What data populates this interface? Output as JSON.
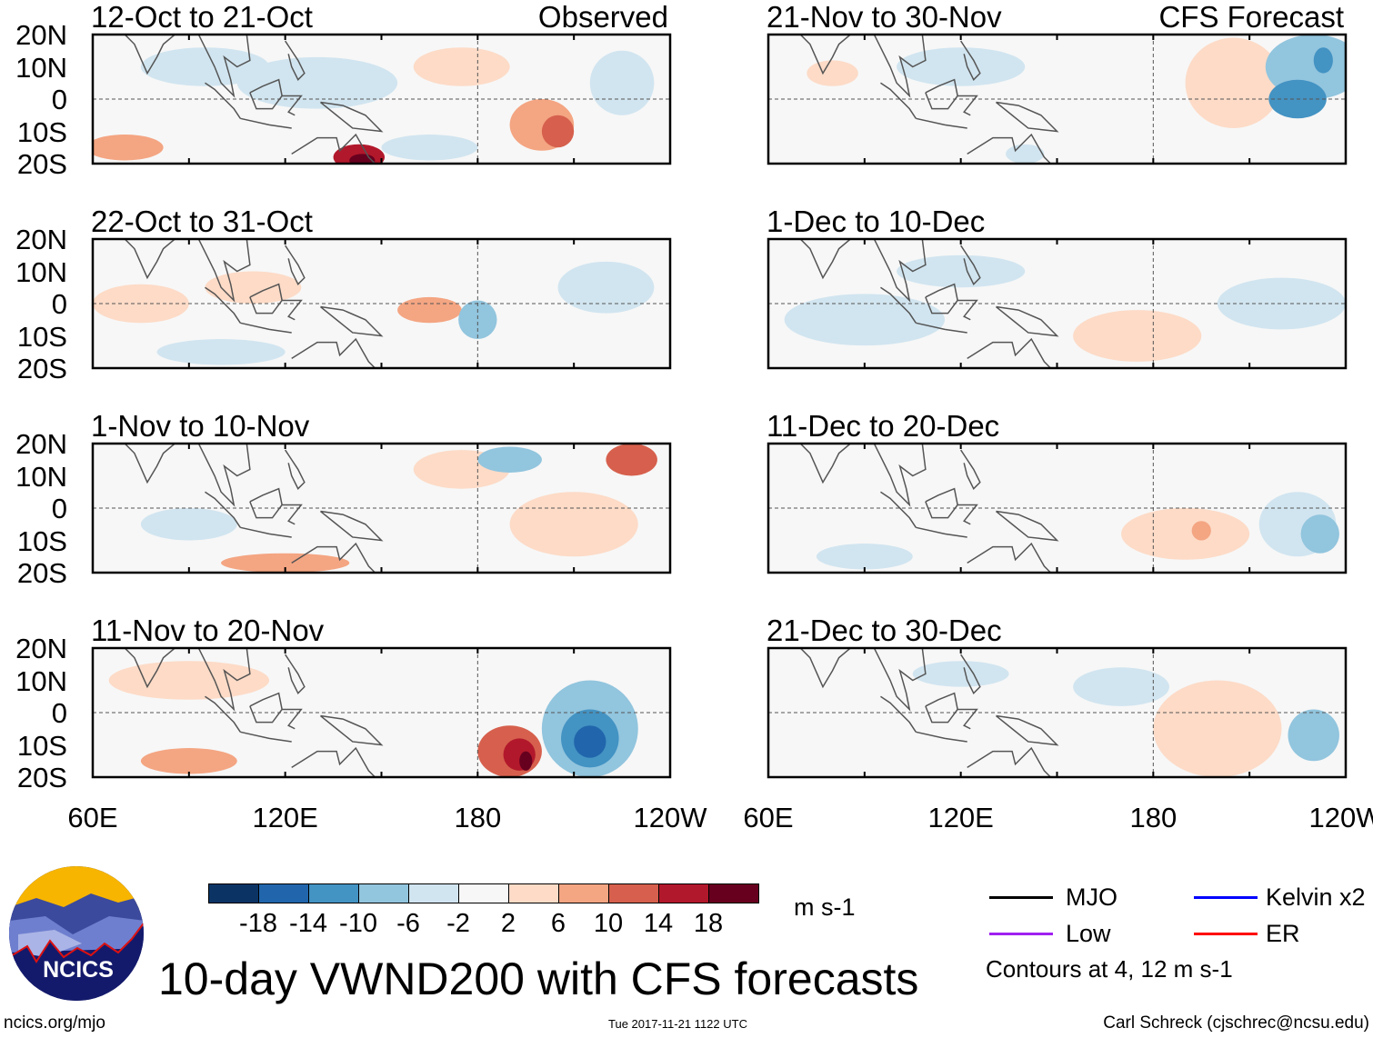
{
  "panels": [
    {
      "title": "12-Oct to 21-Oct",
      "label": "Observed"
    },
    {
      "title": "21-Nov to 30-Nov",
      "label": "CFS Forecast"
    },
    {
      "title": "22-Oct to 31-Oct",
      "label": ""
    },
    {
      "title": "1-Dec to 10-Dec",
      "label": ""
    },
    {
      "title": "1-Nov to 10-Nov",
      "label": ""
    },
    {
      "title": "11-Dec to 20-Dec",
      "label": ""
    },
    {
      "title": "11-Nov to 20-Nov",
      "label": ""
    },
    {
      "title": "21-Dec to 30-Dec",
      "label": ""
    }
  ],
  "lat_labels": [
    "20N",
    "10N",
    "0",
    "10S",
    "20S"
  ],
  "lon_labels": [
    "60E",
    "120E",
    "180",
    "120W"
  ],
  "colorbar": {
    "colors": [
      "#0b3465",
      "#2166ac",
      "#4393c3",
      "#92c5de",
      "#d1e5f0",
      "#f7f7f7",
      "#fddbc7",
      "#f4a582",
      "#d6604d",
      "#b2182b",
      "#67001f"
    ],
    "labels": [
      "-18",
      "-14",
      "-10",
      "-6",
      "-2",
      "2",
      "6",
      "10",
      "14",
      "18"
    ],
    "units": "m s-1"
  },
  "legend": {
    "items": [
      {
        "label": "MJO",
        "color": "#000000"
      },
      {
        "label": "Kelvin x2",
        "color": "#0000ff"
      },
      {
        "label": "Low",
        "color": "#a020f0"
      },
      {
        "label": "ER",
        "color": "#ff0000"
      }
    ],
    "note": "Contours at 4, 12 m s-1"
  },
  "title": "10-day VWND200 with CFS forecasts",
  "logo": "NCICS",
  "footer": {
    "left": "ncics.org/mjo",
    "center": "Tue 2017-11-21 1122 UTC",
    "right": "Carl Schreck (cjschrec@ncsu.edu)"
  }
}
